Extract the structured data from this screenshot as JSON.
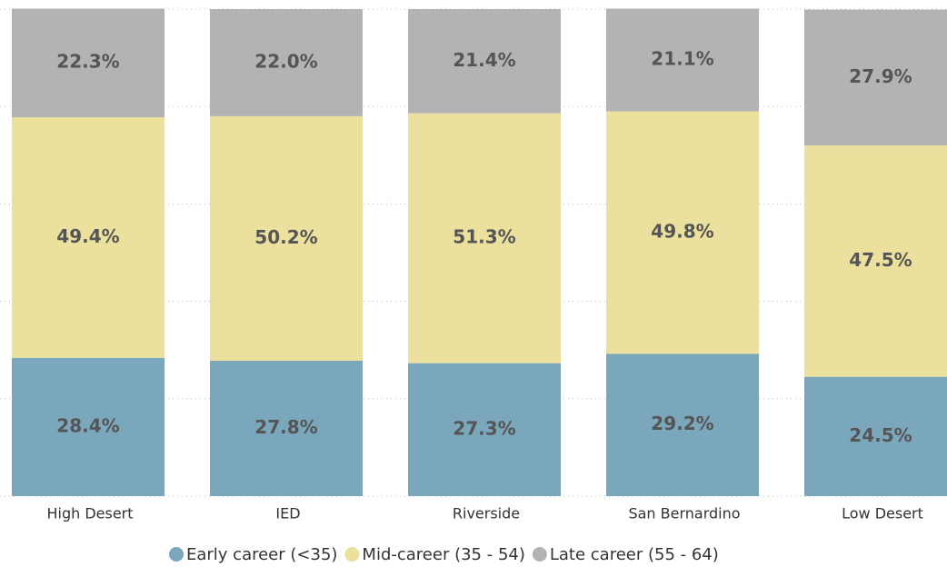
{
  "chart_data": {
    "type": "stacked_bar_100",
    "categories": [
      "High Desert",
      "IED",
      "Riverside",
      "San Bernardino",
      "Low Desert"
    ],
    "series": [
      {
        "name": "Early career (<35)",
        "color": "#7ba7bc",
        "values": [
          28.4,
          27.8,
          27.3,
          29.2,
          24.5
        ],
        "value_labels": [
          "28.4%",
          "27.8%",
          "27.3%",
          "29.2%",
          "24.5%"
        ]
      },
      {
        "name": "Mid-career (35 - 54)",
        "color": "#ebe09e",
        "values": [
          49.4,
          50.2,
          51.3,
          49.8,
          47.5
        ],
        "value_labels": [
          "49.4%",
          "50.2%",
          "51.3%",
          "49.8%",
          "47.5%"
        ]
      },
      {
        "name": "Late career (55 - 64)",
        "color": "#b3b3b3",
        "values": [
          22.3,
          22.0,
          21.4,
          21.1,
          27.9
        ],
        "value_labels": [
          "22.3%",
          "22.0%",
          "21.4%",
          "21.1%",
          "27.9%"
        ]
      }
    ],
    "ylim": [
      0,
      100
    ],
    "yticks": [
      0,
      20,
      40,
      60,
      80,
      100
    ],
    "grid": true,
    "legend": "bottom"
  }
}
